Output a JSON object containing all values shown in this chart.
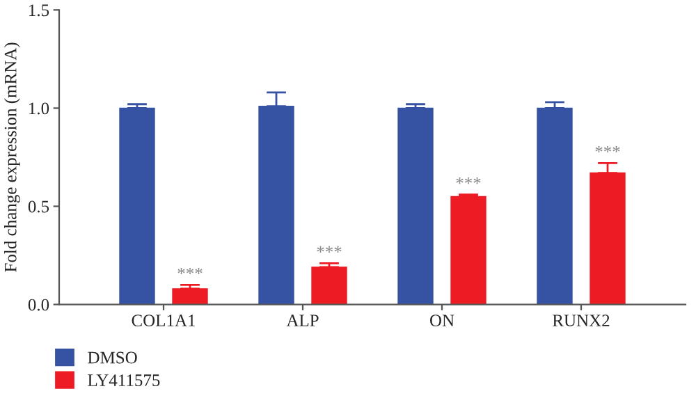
{
  "chart_data": {
    "type": "bar",
    "ylabel": "Fold change expression (mRNA)",
    "categories": [
      "COL1A1",
      "ALP",
      "ON",
      "RUNX2"
    ],
    "series": [
      {
        "name": "DMSO",
        "color": "#3652a3",
        "values": [
          1.0,
          1.01,
          1.0,
          1.0
        ],
        "errors": [
          [
            1.0,
            1.02
          ],
          [
            1.01,
            1.08
          ],
          [
            1.0,
            1.02
          ],
          [
            1.0,
            1.03
          ]
        ]
      },
      {
        "name": "LY411575",
        "color": "#ed1c24",
        "values": [
          0.08,
          0.19,
          0.55,
          0.67
        ],
        "errors": [
          [
            0.08,
            0.1
          ],
          [
            0.19,
            0.21
          ],
          [
            0.55,
            0.56
          ],
          [
            0.67,
            0.72
          ]
        ]
      }
    ],
    "annotations": [
      "***",
      "***",
      "***",
      "***"
    ],
    "ylim": [
      0,
      1.5
    ],
    "yticks": [
      {
        "value": 0,
        "label": "0.0"
      },
      {
        "value": 0.5,
        "label": "0.5"
      },
      {
        "value": 1.0,
        "label": "1.0"
      },
      {
        "value": 1.5,
        "label": "1.5"
      }
    ],
    "legend": "bottom left",
    "grid": false
  }
}
